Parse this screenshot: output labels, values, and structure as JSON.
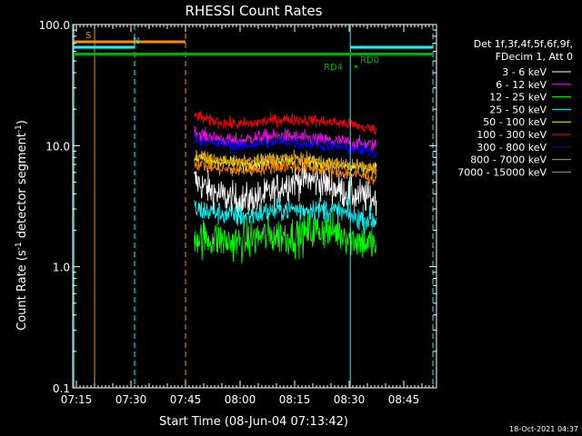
{
  "chart_data": {
    "type": "line",
    "title": "RHESSI Count Rates",
    "xlabel": "Start Time (08-Jun-04 07:13:42)",
    "ylabel_main": "Count Rate (s",
    "ylabel_sup1": "-1",
    "ylabel_mid": " detector segment",
    "ylabel_sup2": "-1",
    "ylabel_end": ")",
    "y_scale": "log",
    "ylim": [
      0.1,
      100.0
    ],
    "xlim_minutes": [
      434.0,
      534.0
    ],
    "x_ticks": [
      {
        "t": 435,
        "label": "07:15"
      },
      {
        "t": 450,
        "label": "07:30"
      },
      {
        "t": 465,
        "label": "07:45"
      },
      {
        "t": 480,
        "label": "08:00"
      },
      {
        "t": 495,
        "label": "08:15"
      },
      {
        "t": 510,
        "label": "08:30"
      },
      {
        "t": 525,
        "label": "08:45"
      }
    ],
    "y_ticks": [
      {
        "v": 0.1,
        "label": "0.1"
      },
      {
        "v": 1.0,
        "label": "1.0"
      },
      {
        "v": 10.0,
        "label": "10.0"
      },
      {
        "v": 100.0,
        "label": "100.0"
      }
    ],
    "data_range_minutes": [
      467.4,
      517.5
    ],
    "series": [
      {
        "name": "3 - 6 keV",
        "color": "#ffffff",
        "values": [
          5.2,
          4.5,
          4.0,
          3.7,
          3.5,
          3.6,
          3.8,
          4.2,
          4.8,
          5.2,
          5.3,
          5.0,
          4.6,
          4.2,
          3.9,
          3.8,
          3.6
        ],
        "noise": 0.14
      },
      {
        "name": "6 - 12 keV",
        "color": "#ff00ff",
        "values": [
          13.0,
          12.0,
          11.5,
          11.0,
          11.0,
          11.5,
          11.8,
          12.0,
          12.0,
          11.8,
          11.5,
          11.2,
          11.0,
          10.8,
          10.5,
          10.3,
          10.0
        ],
        "noise": 0.06
      },
      {
        "name": "12 - 25 keV",
        "color": "#00ff00",
        "values": [
          1.8,
          1.7,
          1.7,
          1.6,
          1.6,
          1.7,
          1.8,
          1.8,
          1.8,
          1.8,
          1.9,
          2.0,
          2.0,
          1.9,
          1.7,
          1.6,
          1.5
        ],
        "noise": 0.16
      },
      {
        "name": "25 - 50 keV",
        "color": "#00ffff",
        "values": [
          3.0,
          2.9,
          2.8,
          2.7,
          2.6,
          2.7,
          2.8,
          2.9,
          3.0,
          3.0,
          3.0,
          3.0,
          2.9,
          2.8,
          2.6,
          2.5,
          2.4
        ],
        "noise": 0.1
      },
      {
        "name": "50 - 100 keV",
        "color": "#ffff00",
        "values": [
          8.0,
          7.6,
          7.4,
          7.2,
          7.0,
          7.2,
          7.4,
          7.6,
          7.8,
          7.6,
          7.4,
          7.2,
          7.0,
          6.8,
          6.6,
          6.5,
          6.4
        ],
        "noise": 0.06
      },
      {
        "name": "100 - 300 keV",
        "color": "#ff0000",
        "values": [
          18.0,
          16.5,
          15.8,
          15.2,
          15.0,
          15.2,
          15.8,
          16.3,
          16.6,
          16.5,
          16.2,
          16.0,
          15.7,
          15.3,
          14.8,
          14.2,
          13.6
        ],
        "noise": 0.05
      },
      {
        "name": "300 - 800 keV",
        "color": "#0000ff",
        "values": [
          11.5,
          10.8,
          10.4,
          10.2,
          10.0,
          10.2,
          10.5,
          10.7,
          10.8,
          10.6,
          10.4,
          10.2,
          10.0,
          9.7,
          9.4,
          9.1,
          8.8
        ],
        "noise": 0.05
      },
      {
        "name": "800 - 7000 keV",
        "color": "#ff8c00",
        "values": [
          7.2,
          6.8,
          6.5,
          6.3,
          6.2,
          6.3,
          6.5,
          6.7,
          6.8,
          6.7,
          6.5,
          6.4,
          6.2,
          6.0,
          5.8,
          5.6,
          5.4
        ],
        "noise": 0.06
      },
      {
        "name": "7000 - 15000 keV",
        "color": "#d2901a",
        "values": [
          8.5,
          8.0,
          7.7,
          7.5,
          7.3,
          7.5,
          7.7,
          7.9,
          8.0,
          7.9,
          7.7,
          7.5,
          7.3,
          7.1,
          6.9,
          6.7,
          6.5
        ],
        "noise": 0.05
      }
    ],
    "legend_header": [
      "Det 1f,3f,4f,5f,6f,9f,",
      "FDecim 1, Att 0"
    ],
    "legend_position": "right",
    "flags": [
      {
        "label": "S",
        "color": "#ff8c00",
        "value": 72.0,
        "start": 434.3,
        "end": 465.0,
        "label_at": 437.5
      },
      {
        "label": "N",
        "color": "#00ffff",
        "value": 65.0,
        "start": 434.3,
        "end": 451.0,
        "label_at": 450.5
      },
      {
        "label": "N",
        "color": "#00ffff",
        "value": 65.0,
        "start": 510.3,
        "end": 533.0,
        "label_at": null
      },
      {
        "label": "",
        "color": "#00aa00",
        "value": 57.0,
        "start": 434.3,
        "end": 533.0,
        "label_at": null
      }
    ],
    "flag_texts": [
      {
        "text": "RD0",
        "color": "#00aa00",
        "t": 513.0,
        "v": 52.0
      },
      {
        "text": "RD4",
        "color": "#00aa00",
        "t": 503.0,
        "v": 45.0
      }
    ],
    "markers": [
      {
        "color": "#00aa00",
        "t": 511.8,
        "v": 45.0
      }
    ],
    "vlines": [
      {
        "t": 434.3,
        "color": "#00ffff",
        "style": "solid"
      },
      {
        "t": 440.0,
        "color": "#ff8c00",
        "style": "solid"
      },
      {
        "t": 451.0,
        "color": "#00ffff",
        "style": "dashed"
      },
      {
        "t": 465.0,
        "color": "#ff8c00",
        "style": "dashed"
      },
      {
        "t": 510.3,
        "color": "#00ffff",
        "style": "solid"
      },
      {
        "t": 533.0,
        "color": "#00ffff",
        "style": "dashed"
      }
    ],
    "timestamp": "18-Oct-2021 04:37"
  }
}
